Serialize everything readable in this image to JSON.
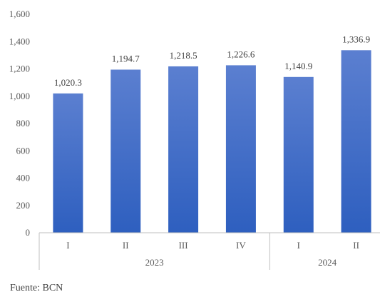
{
  "chart_data": {
    "type": "bar",
    "categories": [
      "I",
      "II",
      "III",
      "IV",
      "I",
      "II"
    ],
    "groups": [
      {
        "label": "2023",
        "count": 4
      },
      {
        "label": "2024",
        "count": 2
      }
    ],
    "values": [
      1020.3,
      1194.7,
      1218.5,
      1226.6,
      1140.9,
      1336.9
    ],
    "data_labels": [
      "1,020.3",
      "1,194.7",
      "1,218.5",
      "1,226.6",
      "1,140.9",
      "1,336.9"
    ],
    "y_ticks": [
      0,
      200,
      400,
      600,
      800,
      1000,
      1200,
      1400,
      1600
    ],
    "y_tick_labels": [
      "0",
      "200",
      "400",
      "600",
      "800",
      "1,000",
      "1,200",
      "1,400",
      "1,600"
    ],
    "ylim": [
      0,
      1600
    ],
    "grid": false,
    "legend": "none",
    "colors": {
      "bar_top": "#5B7FD0",
      "bar_bottom": "#2E5FBF",
      "axis": "#BFBFBF",
      "tick_text": "#595959",
      "label_text": "#404040"
    }
  },
  "source": "Fuente: BCN"
}
